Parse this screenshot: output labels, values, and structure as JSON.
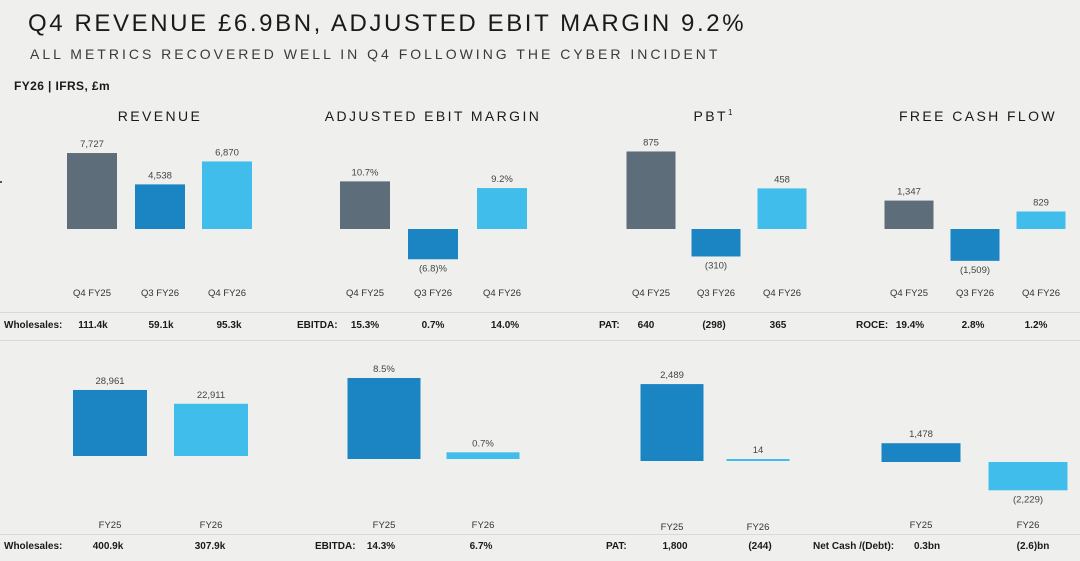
{
  "header": {
    "title": "Q4 REVENUE £6.9BN, ADJUSTED EBIT MARGIN 9.2%",
    "subtitle": "ALL METRICS RECOVERED WELL IN Q4 FOLLOWING THE CYBER INCIDENT",
    "basis": "FY26 | IFRS, £m"
  },
  "colors": {
    "prior": "#5d6e7a",
    "mid_blue": "#1b84c2",
    "light_blue": "#40bdea",
    "divider": "#d9d9d6"
  },
  "panels": {
    "revenue": {
      "title": "REVENUE"
    },
    "ebit": {
      "title": "ADJUSTED EBIT MARGIN"
    },
    "pbt": {
      "title": "PBT",
      "footnote": "1"
    },
    "fcf": {
      "title": "FREE CASH FLOW"
    }
  },
  "chart_data": [
    {
      "type": "bar",
      "panel": "revenue",
      "row": "top",
      "categories": [
        "Q4 FY25",
        "Q3 FY26",
        "Q4 FY26"
      ],
      "values": [
        7727,
        4538,
        6870
      ],
      "labels": [
        "7,727",
        "4,538",
        "6,870"
      ]
    },
    {
      "type": "bar",
      "panel": "ebit",
      "row": "top",
      "categories": [
        "Q4 FY25",
        "Q3 FY26",
        "Q4 FY26"
      ],
      "values": [
        10.7,
        -6.8,
        9.2
      ],
      "labels": [
        "10.7%",
        "(6.8)%",
        "9.2%"
      ]
    },
    {
      "type": "bar",
      "panel": "pbt",
      "row": "top",
      "categories": [
        "Q4 FY25",
        "Q3 FY26",
        "Q4 FY26"
      ],
      "values": [
        875,
        -310,
        458
      ],
      "labels": [
        "875",
        "(310)",
        "458"
      ]
    },
    {
      "type": "bar",
      "panel": "fcf",
      "row": "top",
      "categories": [
        "Q4 FY25",
        "Q3 FY26",
        "Q4 FY26"
      ],
      "values": [
        1347,
        -1509,
        829
      ],
      "labels": [
        "1,347",
        "(1,509)",
        "829"
      ]
    },
    {
      "type": "bar",
      "panel": "revenue",
      "row": "bottom",
      "categories": [
        "FY25",
        "FY26"
      ],
      "values": [
        28961,
        22911
      ],
      "labels": [
        "28,961",
        "22,911"
      ]
    },
    {
      "type": "bar",
      "panel": "ebit",
      "row": "bottom",
      "categories": [
        "FY25",
        "FY26"
      ],
      "values": [
        8.5,
        0.7
      ],
      "labels": [
        "8.5%",
        "0.7%"
      ]
    },
    {
      "type": "bar",
      "panel": "pbt",
      "row": "bottom",
      "categories": [
        "FY25",
        "FY26"
      ],
      "values": [
        2489,
        14
      ],
      "labels": [
        "2,489",
        "14"
      ]
    },
    {
      "type": "bar",
      "panel": "fcf",
      "row": "bottom",
      "categories": [
        "FY25",
        "FY26"
      ],
      "values": [
        1478,
        -2229
      ],
      "labels": [
        "1,478",
        "(2,229)"
      ]
    }
  ],
  "metrics_top": {
    "wholesales": {
      "label": "Wholesales:",
      "values": [
        "111.4k",
        "59.1k",
        "95.3k"
      ]
    },
    "ebitda": {
      "label": "EBITDA:",
      "values": [
        "15.3%",
        "0.7%",
        "14.0%"
      ]
    },
    "pat": {
      "label": "PAT:",
      "values": [
        "640",
        "(298)",
        "365"
      ]
    },
    "roce": {
      "label": "ROCE:",
      "values": [
        "19.4%",
        "2.8%",
        "1.2%"
      ]
    }
  },
  "metrics_bottom": {
    "wholesales": {
      "label": "Wholesales:",
      "values": [
        "400.9k",
        "307.9k"
      ]
    },
    "ebitda": {
      "label": "EBITDA:",
      "values": [
        "14.3%",
        "6.7%"
      ]
    },
    "pat": {
      "label": "PAT:",
      "values": [
        "1,800",
        "(244)"
      ]
    },
    "net_cash": {
      "label": "Net Cash /(Debt):",
      "values": [
        "0.3bn",
        "(2.6)bn"
      ]
    }
  }
}
